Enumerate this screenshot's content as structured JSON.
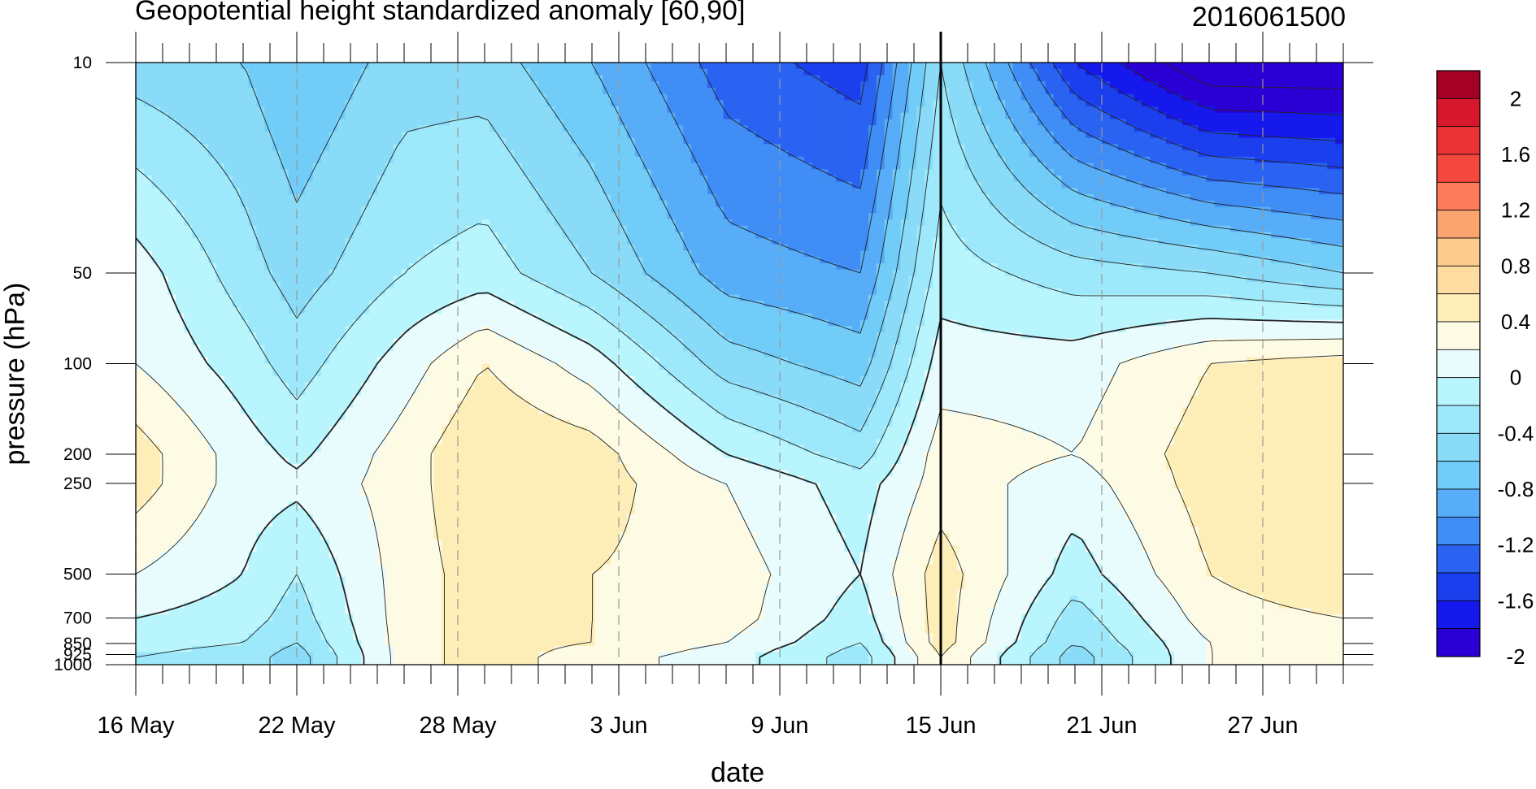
{
  "chart_data": {
    "type": "heatmap",
    "title": "Geopotential height standardized anomaly [60,90]",
    "right_title": "2016061500",
    "xlabel": "date",
    "ylabel": "pressure (hPa)",
    "y_scale": "log",
    "y_reversed": true,
    "ylim": [
      1000,
      10
    ],
    "yticks": [
      {
        "value": 10,
        "label": "10"
      },
      {
        "value": 50,
        "label": "50"
      },
      {
        "value": 100,
        "label": "100"
      },
      {
        "value": 200,
        "label": "200"
      },
      {
        "value": 250,
        "label": "250"
      },
      {
        "value": 500,
        "label": "500"
      },
      {
        "value": 700,
        "label": "700"
      },
      {
        "value": 850,
        "label": "850"
      },
      {
        "value": 925,
        "label": "925"
      },
      {
        "value": 1000,
        "label": "1000"
      }
    ],
    "xlim": [
      "2016-05-16",
      "2016-06-30"
    ],
    "xticks": [
      {
        "date": "2016-05-16",
        "label": "16 May"
      },
      {
        "date": "2016-05-22",
        "label": "22 May"
      },
      {
        "date": "2016-05-28",
        "label": "28 May"
      },
      {
        "date": "2016-06-03",
        "label": "3 Jun"
      },
      {
        "date": "2016-06-09",
        "label": "9 Jun"
      },
      {
        "date": "2016-06-15",
        "label": "15 Jun"
      },
      {
        "date": "2016-06-21",
        "label": "21 Jun"
      },
      {
        "date": "2016-06-27",
        "label": "27 Jun"
      }
    ],
    "reference_date": "2016-06-15",
    "grid": "dashed vertical lines at labeled dates",
    "contour_levels": [
      -2.2,
      -2.0,
      -1.8,
      -1.6,
      -1.4,
      -1.2,
      -1.0,
      -0.8,
      -0.6,
      -0.4,
      -0.2,
      0.0,
      0.2,
      0.4,
      0.6,
      0.8,
      1.0,
      1.2,
      1.4,
      1.6,
      1.8,
      2.0,
      2.2
    ],
    "colorbar": {
      "labels": [
        "2",
        "1.6",
        "1.2",
        "0.8",
        "0.4",
        "0",
        "-0.4",
        "-0.8",
        "-1.2",
        "-1.6",
        "-2"
      ],
      "colors": [
        "#a50026",
        "#d7172b",
        "#e93335",
        "#f4483f",
        "#fb7b5b",
        "#fca46f",
        "#fccb8e",
        "#fcdca0",
        "#fdeeb8",
        "#fefbe4",
        "#e8fbfd",
        "#b8f5fc",
        "#9de8fa",
        "#89dbf8",
        "#71ccf8",
        "#57adf7",
        "#3f8df5",
        "#2a62f1",
        "#1c3fee",
        "#1519ec",
        "#2a00d4"
      ]
    },
    "profiles": [
      {
        "date": "2016-05-16",
        "values": {
          "10": -0.5,
          "50": 0.1,
          "100": 0.2,
          "200": 0.5,
          "250": 0.5,
          "500": 0.2,
          "700": 0.0,
          "850": -0.1,
          "925": -0.2,
          "1000": -0.2
        }
      },
      {
        "date": "2016-05-20",
        "values": {
          "10": -0.6,
          "50": -0.3,
          "100": -0.1,
          "200": 0.1,
          "250": 0.1,
          "500": 0.0,
          "700": -0.1,
          "850": -0.2,
          "925": -0.3,
          "1000": -0.3
        }
      },
      {
        "date": "2016-05-22",
        "values": {
          "10": -0.8,
          "50": -0.5,
          "100": -0.3,
          "200": -0.05,
          "250": 0.05,
          "500": -0.2,
          "700": -0.3,
          "850": -0.4,
          "925": -0.5,
          "1000": -0.5
        }
      },
      {
        "date": "2016-05-26",
        "values": {
          "10": -0.5,
          "50": -0.2,
          "100": 0.1,
          "200": 0.3,
          "250": 0.3,
          "500": 0.3,
          "700": 0.3,
          "850": 0.3,
          "925": 0.3,
          "1000": 0.3
        }
      },
      {
        "date": "2016-05-29",
        "values": {
          "10": -0.5,
          "50": -0.1,
          "100": 0.4,
          "200": 0.6,
          "250": 0.6,
          "500": 0.5,
          "700": 0.5,
          "850": 0.5,
          "925": 0.5,
          "1000": 0.5
        }
      },
      {
        "date": "2016-06-02",
        "values": {
          "10": -0.8,
          "50": -0.4,
          "100": 0.1,
          "200": 0.5,
          "250": 0.5,
          "500": 0.4,
          "700": 0.4,
          "850": 0.4,
          "925": 0.3,
          "1000": 0.3
        }
      },
      {
        "date": "2016-06-07",
        "values": {
          "10": -1.3,
          "50": -0.9,
          "100": -0.5,
          "200": 0.0,
          "250": 0.2,
          "500": 0.3,
          "700": 0.3,
          "850": 0.2,
          "925": 0.1,
          "1000": 0.1
        }
      },
      {
        "date": "2016-06-12",
        "values": {
          "10": -1.5,
          "50": -1.0,
          "100": -0.7,
          "200": -0.3,
          "250": -0.1,
          "500": 0.0,
          "700": -0.1,
          "850": -0.2,
          "925": -0.3,
          "1000": -0.3
        }
      },
      {
        "date": "2016-06-15",
        "values": {
          "10": -0.4,
          "50": -0.1,
          "100": 0.1,
          "200": 0.3,
          "250": 0.3,
          "500": 0.5,
          "700": 0.5,
          "850": 0.5,
          "925": 0.4,
          "1000": 0.4
        }
      },
      {
        "date": "2016-06-20",
        "values": {
          "10": -1.6,
          "50": -0.3,
          "100": 0.1,
          "200": 0.2,
          "250": 0.1,
          "500": -0.1,
          "700": -0.3,
          "850": -0.4,
          "925": -0.5,
          "1000": -0.5
        }
      },
      {
        "date": "2016-06-25",
        "values": {
          "10": -2.2,
          "50": -0.4,
          "100": 0.4,
          "200": 0.5,
          "250": 0.5,
          "500": 0.4,
          "700": 0.3,
          "850": 0.2,
          "925": 0.2,
          "1000": 0.2
        }
      },
      {
        "date": "2016-06-30",
        "values": {
          "10": -2.2,
          "50": -0.6,
          "100": 0.5,
          "200": 0.6,
          "250": 0.6,
          "500": 0.6,
          "700": 0.4,
          "850": 0.3,
          "925": 0.2,
          "1000": 0.2
        }
      }
    ]
  }
}
